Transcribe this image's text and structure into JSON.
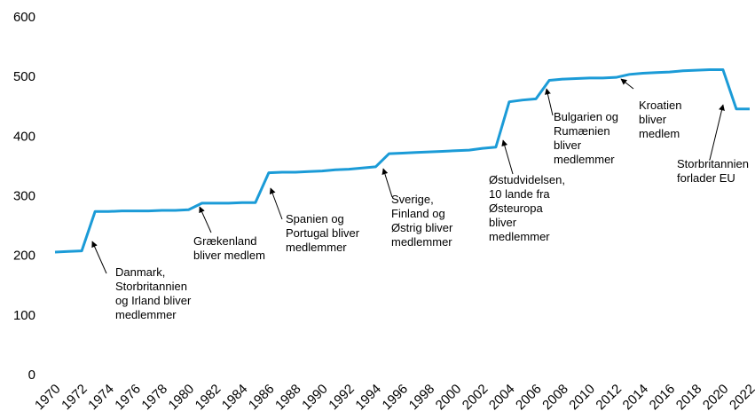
{
  "chart_data": {
    "type": "line",
    "x": [
      1970,
      1971,
      1972,
      1973,
      1974,
      1975,
      1976,
      1977,
      1978,
      1979,
      1980,
      1981,
      1982,
      1983,
      1984,
      1985,
      1986,
      1987,
      1988,
      1989,
      1990,
      1991,
      1992,
      1993,
      1994,
      1995,
      1996,
      1997,
      1998,
      1999,
      2000,
      2001,
      2002,
      2003,
      2004,
      2005,
      2006,
      2007,
      2008,
      2009,
      2010,
      2011,
      2012,
      2013,
      2014,
      2015,
      2016,
      2017,
      2018,
      2019,
      2020,
      2021,
      2022
    ],
    "values": [
      207,
      208,
      209,
      275,
      275,
      276,
      276,
      276,
      277,
      277,
      278,
      289,
      289,
      289,
      290,
      290,
      340,
      341,
      341,
      342,
      343,
      345,
      346,
      348,
      350,
      372,
      373,
      374,
      375,
      376,
      377,
      378,
      381,
      383,
      459,
      462,
      464,
      495,
      497,
      498,
      499,
      499,
      500,
      505,
      507,
      508,
      509,
      511,
      512,
      513,
      513,
      447,
      447
    ],
    "color": "#1b9bd7",
    "xlim": [
      1970,
      2022
    ],
    "xticks": [
      1970,
      1972,
      1974,
      1976,
      1978,
      1980,
      1982,
      1984,
      1986,
      1988,
      1990,
      1992,
      1994,
      1996,
      1998,
      2000,
      2002,
      2004,
      2006,
      2008,
      2010,
      2012,
      2014,
      2016,
      2018,
      2020,
      2022
    ],
    "ylim": [
      0,
      600
    ],
    "yticks": [
      0,
      100,
      200,
      300,
      400,
      500,
      600
    ],
    "grid": false,
    "annotations": [
      [
        "Danmark,",
        "Storbritannien",
        "og Irland bliver",
        "medlemmer"
      ],
      [
        "Grækenland",
        "bliver medlem"
      ],
      [
        "Spanien og",
        "Portugal bliver",
        "medlemmer"
      ],
      [
        "Sverige,",
        "Finland og",
        "Østrig bliver",
        "medlemmer"
      ],
      [
        "Østudvidelsen,",
        "10 lande fra",
        "Østeuropa",
        "bliver",
        "medlemmer"
      ],
      [
        "Bulgarien og",
        "Rumænien",
        "bliver",
        "medlemmer"
      ],
      [
        "Kroatien",
        "bliver",
        "medlem"
      ],
      [
        "Storbritannien",
        "forlader EU"
      ]
    ]
  }
}
